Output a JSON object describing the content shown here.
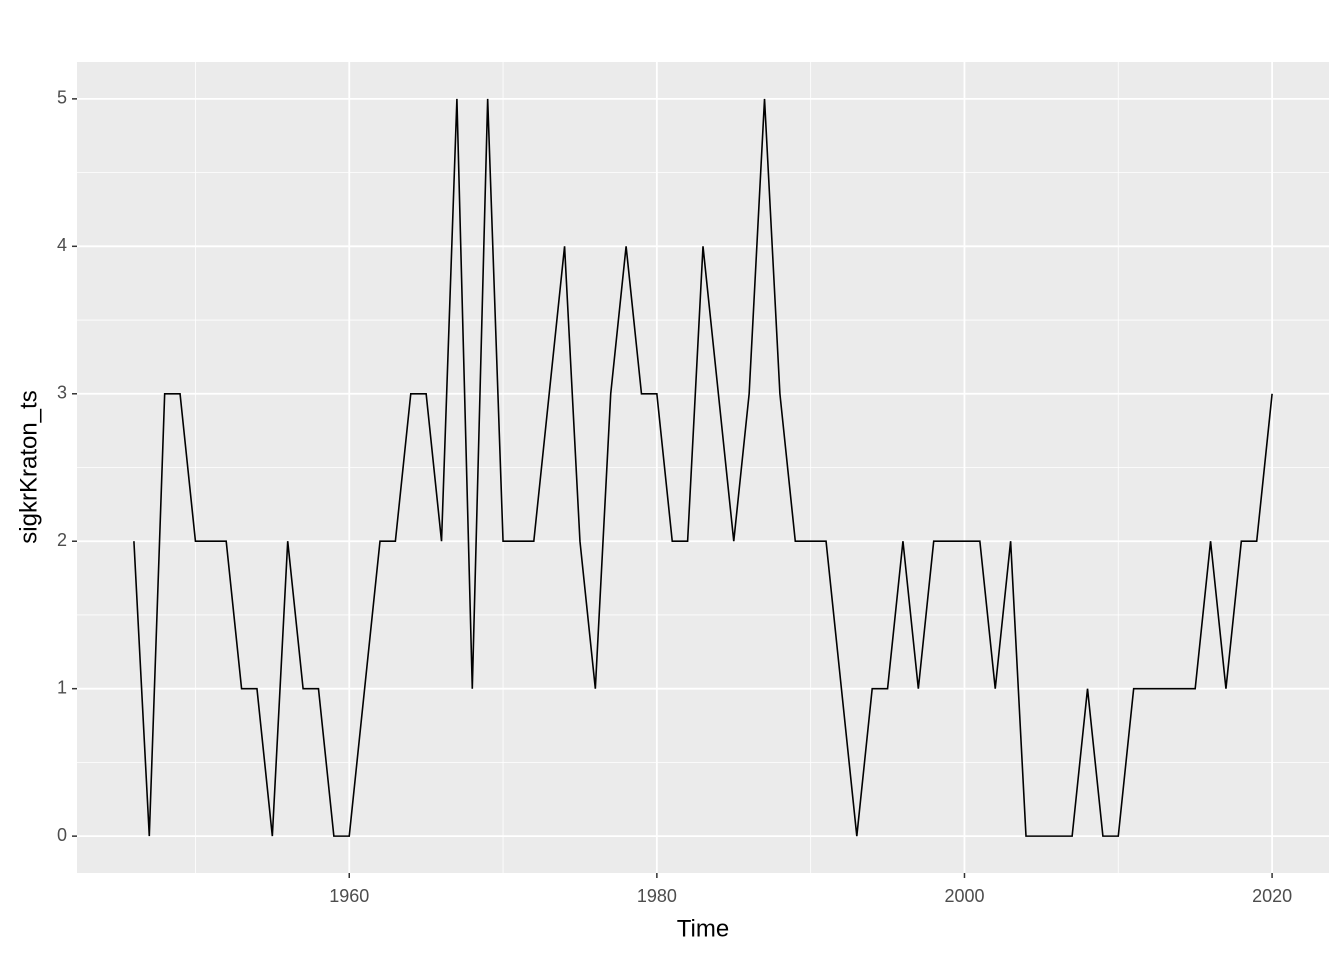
{
  "chart_data": {
    "type": "line",
    "x_label": "Time",
    "y_label": "sigkrKraton_ts",
    "x": [
      1946,
      1947,
      1948,
      1949,
      1950,
      1951,
      1952,
      1953,
      1954,
      1955,
      1956,
      1957,
      1958,
      1959,
      1960,
      1961,
      1962,
      1963,
      1964,
      1965,
      1966,
      1967,
      1968,
      1969,
      1970,
      1971,
      1972,
      1973,
      1974,
      1975,
      1976,
      1977,
      1978,
      1979,
      1980,
      1981,
      1982,
      1983,
      1984,
      1985,
      1986,
      1987,
      1988,
      1989,
      1990,
      1991,
      1992,
      1993,
      1994,
      1995,
      1996,
      1997,
      1998,
      1999,
      2000,
      2001,
      2002,
      2003,
      2004,
      2005,
      2006,
      2007,
      2008,
      2009,
      2010,
      2011,
      2012,
      2013,
      2014,
      2015,
      2016,
      2017,
      2018,
      2019,
      2020
    ],
    "values": [
      2,
      0,
      3,
      3,
      2,
      2,
      2,
      1,
      1,
      0,
      2,
      1,
      1,
      0,
      0,
      1,
      2,
      2,
      3,
      3,
      2,
      5,
      1,
      5,
      2,
      2,
      2,
      3,
      4,
      2,
      1,
      3,
      4,
      3,
      3,
      2,
      2,
      4,
      3,
      2,
      3,
      5,
      3,
      2,
      2,
      2,
      1,
      0,
      1,
      1,
      2,
      1,
      2,
      2,
      2,
      2,
      1,
      2,
      0,
      0,
      0,
      0,
      1,
      0,
      0,
      1,
      1,
      1,
      1,
      1,
      2,
      1,
      2,
      2,
      3
    ],
    "color": "#000000",
    "xlim": [
      1942.3,
      2023.7
    ],
    "xticks": [
      1960,
      1980,
      2000,
      2020
    ],
    "xminor": [
      1950,
      1970,
      1990,
      2010
    ],
    "ylim": [
      -0.25,
      5.25
    ],
    "yticks": [
      0,
      1,
      2,
      3,
      4,
      5
    ],
    "yminor": [
      0.5,
      1.5,
      2.5,
      3.5,
      4.5
    ],
    "grid": true
  }
}
